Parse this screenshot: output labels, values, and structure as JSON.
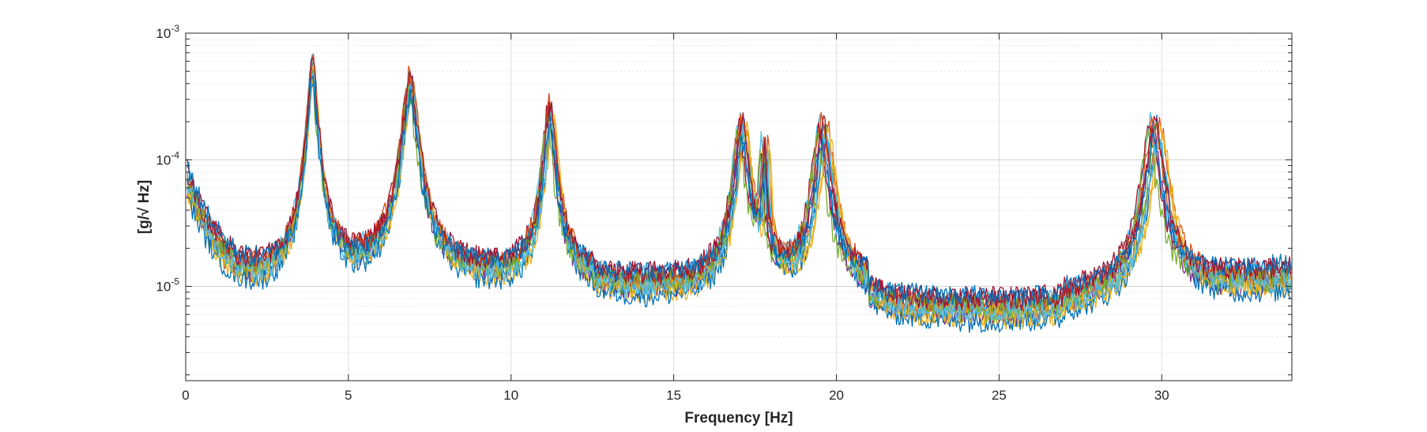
{
  "chart_data": {
    "type": "line",
    "title": "",
    "xlabel": "Frequency [Hz]",
    "ylabel": "[g/√ Hz]",
    "xscale": "linear",
    "yscale": "log",
    "xlim": [
      0,
      34
    ],
    "ylim": [
      1.8e-06,
      0.001
    ],
    "grid": true,
    "minor_grid": true,
    "legend": "none",
    "x_ticks": [
      0,
      5,
      10,
      15,
      20,
      25,
      30
    ],
    "x_tick_labels": [
      "0",
      "5",
      "10",
      "15",
      "20",
      "25",
      "30"
    ],
    "y_ticks": [
      1e-05,
      0.0001,
      0.001
    ],
    "y_tick_labels": [
      {
        "base": "10",
        "exp": "-5"
      },
      {
        "base": "10",
        "exp": "-4"
      },
      {
        "base": "10",
        "exp": "-3"
      }
    ],
    "peaks": [
      {
        "f": 3.9,
        "amp": 0.00062
      },
      {
        "f": 6.9,
        "amp": 0.00045
      },
      {
        "f": 11.2,
        "amp": 0.00027
      },
      {
        "f": 17.1,
        "amp": 0.00021
      },
      {
        "f": 17.8,
        "amp": 0.00013
      },
      {
        "f": 19.6,
        "amp": 0.00019
      },
      {
        "f": 29.8,
        "amp": 0.0002
      }
    ],
    "series": [
      {
        "color": "#0072BD",
        "base_scale": 1.0,
        "peak_shift": 0.0,
        "peak_scale": 1.0
      },
      {
        "color": "#D95319",
        "base_scale": 1.15,
        "peak_shift": 0.08,
        "peak_scale": 0.9
      },
      {
        "color": "#EDB120",
        "base_scale": 0.85,
        "peak_shift": 0.1,
        "peak_scale": 0.75
      },
      {
        "color": "#7E2F8E",
        "base_scale": 0.9,
        "peak_shift": -0.05,
        "peak_scale": 0.8
      },
      {
        "color": "#77AC30",
        "base_scale": 0.95,
        "peak_shift": 0.03,
        "peak_scale": 0.85
      },
      {
        "color": "#4DBEEE",
        "base_scale": 1.2,
        "peak_shift": -0.08,
        "peak_scale": 0.95
      },
      {
        "color": "#A2142F",
        "base_scale": 1.3,
        "peak_shift": -0.1,
        "peak_scale": 0.85
      },
      {
        "color": "#0072BD",
        "base_scale": 0.8,
        "peak_shift": 0.05,
        "peak_scale": 0.7
      },
      {
        "color": "#D95319",
        "base_scale": 1.05,
        "peak_shift": -0.03,
        "peak_scale": 1.05
      },
      {
        "color": "#EDB120",
        "base_scale": 0.9,
        "peak_shift": 0.12,
        "peak_scale": 0.8
      },
      {
        "color": "#77AC30",
        "base_scale": 1.1,
        "peak_shift": -0.12,
        "peak_scale": 0.7
      },
      {
        "color": "#4DBEEE",
        "base_scale": 0.95,
        "peak_shift": 0.06,
        "peak_scale": 0.75
      },
      {
        "color": "#A2142F",
        "base_scale": 1.2,
        "peak_shift": 0.0,
        "peak_scale": 0.95
      },
      {
        "color": "#0072BD",
        "base_scale": 1.35,
        "peak_shift": -0.02,
        "peak_scale": 0.65
      }
    ]
  }
}
